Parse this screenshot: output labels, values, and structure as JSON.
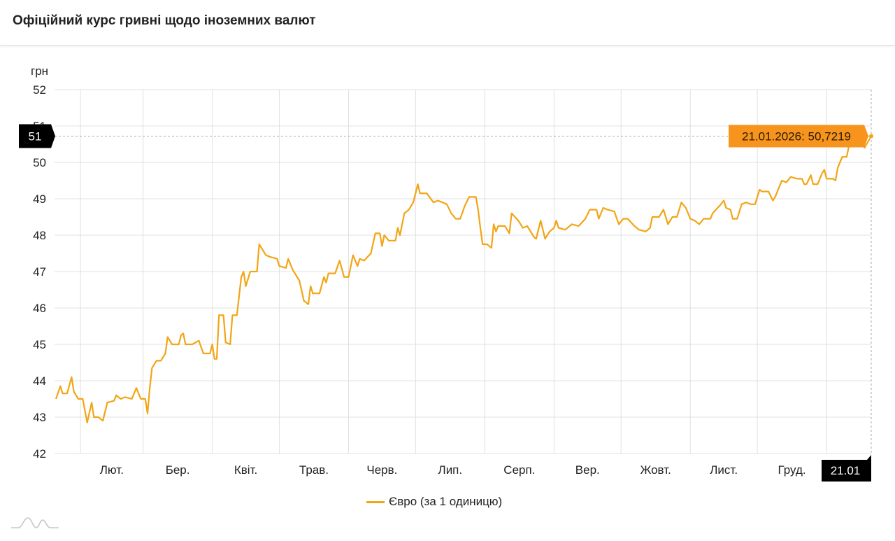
{
  "header": {
    "title": "Офіційний курс гривні щодо іноземних валют"
  },
  "colors": {
    "series": "#f2a516",
    "tooltip": "#f7941d",
    "marker": "#000000",
    "grid": "#e0e0e0"
  },
  "chart_data": {
    "type": "line",
    "title": "",
    "ylabel": "грн",
    "xlabel": "",
    "ylim": [
      42,
      52
    ],
    "yticks": [
      "42",
      "43",
      "44",
      "45",
      "46",
      "47",
      "48",
      "49",
      "50",
      "51",
      "52"
    ],
    "xlim": [
      "2025-01-21",
      "2026-01-21"
    ],
    "xticks": [
      {
        "date": "2025-02-01",
        "label": "Лют."
      },
      {
        "date": "2025-03-01",
        "label": "Бер."
      },
      {
        "date": "2025-04-01",
        "label": "Квіт."
      },
      {
        "date": "2025-05-01",
        "label": "Трав."
      },
      {
        "date": "2025-06-01",
        "label": "Черв."
      },
      {
        "date": "2025-07-01",
        "label": "Лип."
      },
      {
        "date": "2025-08-01",
        "label": "Серп."
      },
      {
        "date": "2025-09-01",
        "label": "Вер."
      },
      {
        "date": "2025-10-01",
        "label": "Жовт."
      },
      {
        "date": "2025-11-01",
        "label": "Лист."
      },
      {
        "date": "2025-12-01",
        "label": "Груд."
      }
    ],
    "grid": true,
    "legend": "bottom",
    "crosshair": {
      "x_label": "21.01",
      "y_label": "51",
      "tooltip": "21.01.2026: 50,7219",
      "date": "2026-01-21",
      "value": 50.7219
    },
    "series": [
      {
        "name": "Євро (за 1 одиницю)",
        "points": [
          [
            "2025-01-21",
            43.5
          ],
          [
            "2025-01-23",
            43.85
          ],
          [
            "2025-01-24",
            43.65
          ],
          [
            "2025-01-26",
            43.65
          ],
          [
            "2025-01-28",
            44.1
          ],
          [
            "2025-01-29",
            43.7
          ],
          [
            "2025-01-31",
            43.5
          ],
          [
            "2025-02-02",
            43.5
          ],
          [
            "2025-02-04",
            42.85
          ],
          [
            "2025-02-06",
            43.4
          ],
          [
            "2025-02-07",
            43.0
          ],
          [
            "2025-02-09",
            43.0
          ],
          [
            "2025-02-11",
            42.9
          ],
          [
            "2025-02-13",
            43.4
          ],
          [
            "2025-02-16",
            43.45
          ],
          [
            "2025-02-17",
            43.6
          ],
          [
            "2025-02-19",
            43.5
          ],
          [
            "2025-02-21",
            43.55
          ],
          [
            "2025-02-24",
            43.5
          ],
          [
            "2025-02-26",
            43.8
          ],
          [
            "2025-02-28",
            43.5
          ],
          [
            "2025-03-02",
            43.5
          ],
          [
            "2025-03-03",
            43.1
          ],
          [
            "2025-03-04",
            43.8
          ],
          [
            "2025-03-05",
            44.35
          ],
          [
            "2025-03-07",
            44.55
          ],
          [
            "2025-03-09",
            44.55
          ],
          [
            "2025-03-11",
            44.75
          ],
          [
            "2025-03-12",
            45.2
          ],
          [
            "2025-03-14",
            45.0
          ],
          [
            "2025-03-17",
            45.0
          ],
          [
            "2025-03-18",
            45.25
          ],
          [
            "2025-03-19",
            45.3
          ],
          [
            "2025-03-20",
            45.0
          ],
          [
            "2025-03-23",
            45.0
          ],
          [
            "2025-03-26",
            45.1
          ],
          [
            "2025-03-28",
            44.75
          ],
          [
            "2025-03-31",
            44.75
          ],
          [
            "2025-04-01",
            45.0
          ],
          [
            "2025-04-02",
            44.6
          ],
          [
            "2025-04-03",
            44.6
          ],
          [
            "2025-04-04",
            45.8
          ],
          [
            "2025-04-06",
            45.8
          ],
          [
            "2025-04-07",
            45.05
          ],
          [
            "2025-04-09",
            45.0
          ],
          [
            "2025-04-10",
            45.8
          ],
          [
            "2025-04-12",
            45.8
          ],
          [
            "2025-04-14",
            46.85
          ],
          [
            "2025-04-15",
            47.0
          ],
          [
            "2025-04-16",
            46.6
          ],
          [
            "2025-04-18",
            47.0
          ],
          [
            "2025-04-21",
            47.0
          ],
          [
            "2025-04-22",
            47.75
          ],
          [
            "2025-04-25",
            47.45
          ],
          [
            "2025-04-27",
            47.4
          ],
          [
            "2025-04-30",
            47.35
          ],
          [
            "2025-05-01",
            47.15
          ],
          [
            "2025-05-04",
            47.1
          ],
          [
            "2025-05-05",
            47.35
          ],
          [
            "2025-05-07",
            47.05
          ],
          [
            "2025-05-10",
            46.75
          ],
          [
            "2025-05-12",
            46.2
          ],
          [
            "2025-05-14",
            46.1
          ],
          [
            "2025-05-15",
            46.6
          ],
          [
            "2025-05-16",
            46.4
          ],
          [
            "2025-05-19",
            46.4
          ],
          [
            "2025-05-21",
            46.85
          ],
          [
            "2025-05-22",
            46.7
          ],
          [
            "2025-05-23",
            46.95
          ],
          [
            "2025-05-26",
            46.95
          ],
          [
            "2025-05-28",
            47.3
          ],
          [
            "2025-05-30",
            46.85
          ],
          [
            "2025-06-01",
            46.85
          ],
          [
            "2025-06-03",
            47.45
          ],
          [
            "2025-06-05",
            47.15
          ],
          [
            "2025-06-06",
            47.35
          ],
          [
            "2025-06-08",
            47.3
          ],
          [
            "2025-06-11",
            47.5
          ],
          [
            "2025-06-13",
            48.05
          ],
          [
            "2025-06-15",
            48.05
          ],
          [
            "2025-06-16",
            47.7
          ],
          [
            "2025-06-17",
            48.0
          ],
          [
            "2025-06-19",
            47.85
          ],
          [
            "2025-06-22",
            47.85
          ],
          [
            "2025-06-23",
            48.2
          ],
          [
            "2025-06-24",
            48.0
          ],
          [
            "2025-06-26",
            48.6
          ],
          [
            "2025-06-28",
            48.7
          ],
          [
            "2025-06-30",
            48.9
          ],
          [
            "2025-07-02",
            49.4
          ],
          [
            "2025-07-03",
            49.15
          ],
          [
            "2025-07-06",
            49.15
          ],
          [
            "2025-07-09",
            48.9
          ],
          [
            "2025-07-11",
            48.95
          ],
          [
            "2025-07-13",
            48.9
          ],
          [
            "2025-07-15",
            48.85
          ],
          [
            "2025-07-17",
            48.6
          ],
          [
            "2025-07-19",
            48.45
          ],
          [
            "2025-07-21",
            48.45
          ],
          [
            "2025-07-23",
            48.8
          ],
          [
            "2025-07-25",
            49.05
          ],
          [
            "2025-07-28",
            49.05
          ],
          [
            "2025-07-29",
            48.7
          ],
          [
            "2025-07-30",
            48.2
          ],
          [
            "2025-07-31",
            47.75
          ],
          [
            "2025-08-02",
            47.75
          ],
          [
            "2025-08-04",
            47.65
          ],
          [
            "2025-08-05",
            48.3
          ],
          [
            "2025-08-06",
            48.1
          ],
          [
            "2025-08-07",
            48.25
          ],
          [
            "2025-08-10",
            48.25
          ],
          [
            "2025-08-12",
            48.05
          ],
          [
            "2025-08-13",
            48.6
          ],
          [
            "2025-08-16",
            48.4
          ],
          [
            "2025-08-18",
            48.2
          ],
          [
            "2025-08-20",
            48.25
          ],
          [
            "2025-08-23",
            47.95
          ],
          [
            "2025-08-24",
            47.9
          ],
          [
            "2025-08-26",
            48.4
          ],
          [
            "2025-08-28",
            47.9
          ],
          [
            "2025-08-30",
            48.1
          ],
          [
            "2025-09-01",
            48.2
          ],
          [
            "2025-09-02",
            48.4
          ],
          [
            "2025-09-03",
            48.2
          ],
          [
            "2025-09-06",
            48.15
          ],
          [
            "2025-09-09",
            48.3
          ],
          [
            "2025-09-12",
            48.25
          ],
          [
            "2025-09-15",
            48.45
          ],
          [
            "2025-09-17",
            48.7
          ],
          [
            "2025-09-20",
            48.7
          ],
          [
            "2025-09-21",
            48.45
          ],
          [
            "2025-09-23",
            48.75
          ],
          [
            "2025-09-25",
            48.7
          ],
          [
            "2025-09-28",
            48.65
          ],
          [
            "2025-09-30",
            48.3
          ],
          [
            "2025-10-02",
            48.45
          ],
          [
            "2025-10-04",
            48.45
          ],
          [
            "2025-10-07",
            48.25
          ],
          [
            "2025-10-09",
            48.15
          ],
          [
            "2025-10-12",
            48.1
          ],
          [
            "2025-10-14",
            48.2
          ],
          [
            "2025-10-15",
            48.5
          ],
          [
            "2025-10-18",
            48.5
          ],
          [
            "2025-10-20",
            48.7
          ],
          [
            "2025-10-22",
            48.3
          ],
          [
            "2025-10-24",
            48.5
          ],
          [
            "2025-10-26",
            48.5
          ],
          [
            "2025-10-28",
            48.9
          ],
          [
            "2025-10-30",
            48.75
          ],
          [
            "2025-11-01",
            48.45
          ],
          [
            "2025-11-03",
            48.4
          ],
          [
            "2025-11-05",
            48.3
          ],
          [
            "2025-11-07",
            48.45
          ],
          [
            "2025-11-10",
            48.45
          ],
          [
            "2025-11-11",
            48.6
          ],
          [
            "2025-11-14",
            48.8
          ],
          [
            "2025-11-16",
            48.95
          ],
          [
            "2025-11-17",
            48.75
          ],
          [
            "2025-11-19",
            48.7
          ],
          [
            "2025-11-20",
            48.45
          ],
          [
            "2025-11-22",
            48.45
          ],
          [
            "2025-11-24",
            48.85
          ],
          [
            "2025-11-26",
            48.9
          ],
          [
            "2025-11-28",
            48.85
          ],
          [
            "2025-11-30",
            48.85
          ],
          [
            "2025-12-02",
            49.25
          ],
          [
            "2025-12-03",
            49.2
          ],
          [
            "2025-12-06",
            49.2
          ],
          [
            "2025-12-08",
            48.95
          ],
          [
            "2025-12-09",
            49.05
          ],
          [
            "2025-12-12",
            49.5
          ],
          [
            "2025-12-14",
            49.45
          ],
          [
            "2025-12-16",
            49.6
          ],
          [
            "2025-12-19",
            49.55
          ],
          [
            "2025-12-21",
            49.55
          ],
          [
            "2025-12-22",
            49.4
          ],
          [
            "2025-12-23",
            49.4
          ],
          [
            "2025-12-25",
            49.65
          ],
          [
            "2025-12-26",
            49.4
          ],
          [
            "2025-12-28",
            49.4
          ],
          [
            "2025-12-30",
            49.7
          ],
          [
            "2025-12-31",
            49.8
          ],
          [
            "2026-01-01",
            49.55
          ],
          [
            "2026-01-04",
            49.55
          ],
          [
            "2026-01-05",
            49.5
          ],
          [
            "2026-01-06",
            49.85
          ],
          [
            "2026-01-08",
            50.15
          ],
          [
            "2026-01-10",
            50.15
          ],
          [
            "2026-01-11",
            50.45
          ],
          [
            "2026-01-12",
            50.55
          ],
          [
            "2026-01-14",
            50.45
          ],
          [
            "2026-01-15",
            50.75
          ],
          [
            "2026-01-17",
            50.65
          ],
          [
            "2026-01-18",
            50.4
          ],
          [
            "2026-01-21",
            50.7219
          ]
        ]
      }
    ]
  }
}
